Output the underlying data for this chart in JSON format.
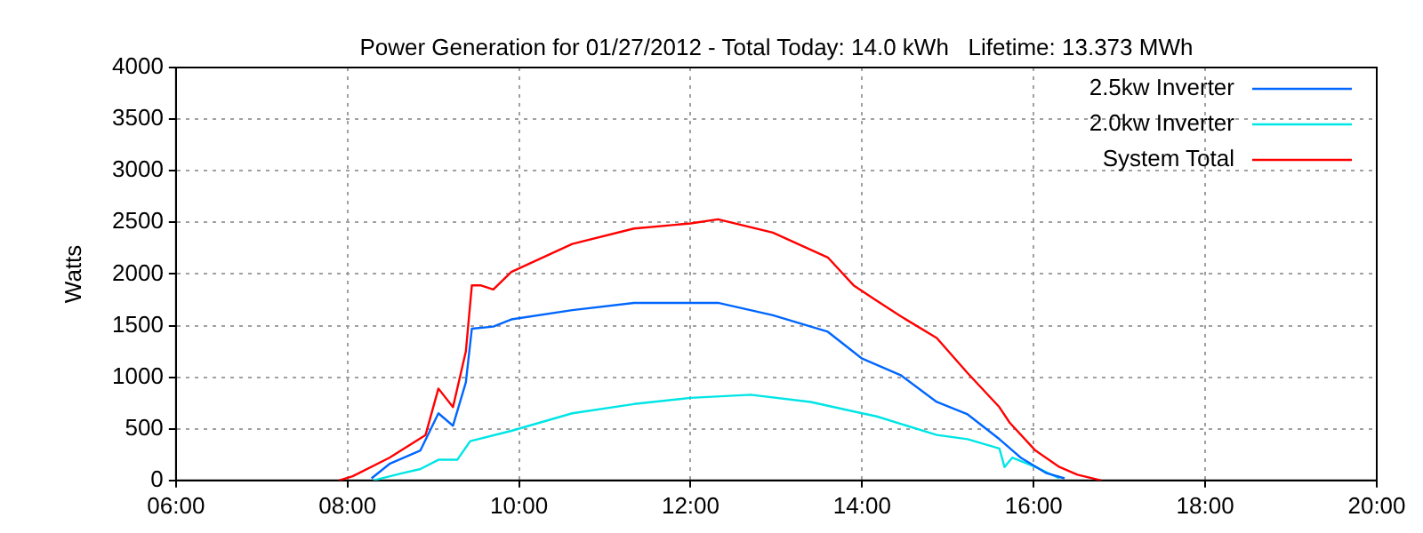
{
  "chart_data": {
    "type": "line",
    "title": "Power Generation for 01/27/2012 - Total Today: 14.0 kWh   Lifetime: 13.373 MWh",
    "ylabel": "Watts",
    "xlim": [
      6,
      20
    ],
    "xticks": [
      {
        "value": 6,
        "label": "06:00"
      },
      {
        "value": 8,
        "label": "08:00"
      },
      {
        "value": 10,
        "label": "10:00"
      },
      {
        "value": 12,
        "label": "12:00"
      },
      {
        "value": 14,
        "label": "14:00"
      },
      {
        "value": 16,
        "label": "16:00"
      },
      {
        "value": 18,
        "label": "18:00"
      },
      {
        "value": 20,
        "label": "20:00"
      }
    ],
    "ylim": [
      0,
      4000
    ],
    "yticks": [
      0,
      500,
      1000,
      1500,
      2000,
      2500,
      3000,
      3500,
      4000
    ],
    "grid": true,
    "legend": "top right",
    "marker": "none",
    "line_style": "solid",
    "series": [
      {
        "name": "2.5kw Inverter",
        "color": "#0066ff",
        "x": [
          8.28,
          8.49,
          8.85,
          9.06,
          9.23,
          9.38,
          9.45,
          9.7,
          9.91,
          10.62,
          11.34,
          12.32,
          12.96,
          13.6,
          14.0,
          14.45,
          14.87,
          15.23,
          15.6,
          15.85,
          16.15,
          16.36
        ],
        "values": [
          20,
          160,
          290,
          650,
          530,
          950,
          1470,
          1490,
          1560,
          1650,
          1720,
          1720,
          1600,
          1440,
          1180,
          1020,
          760,
          640,
          400,
          220,
          70,
          20
        ]
      },
      {
        "name": "2.0kw Inverter",
        "color": "#00e5e5",
        "x": [
          8.3,
          8.64,
          8.85,
          9.06,
          9.28,
          9.43,
          9.91,
          10.62,
          11.34,
          12.0,
          12.7,
          13.4,
          14.0,
          14.17,
          14.87,
          15.23,
          15.6,
          15.66,
          15.75,
          16.02,
          16.3
        ],
        "values": [
          0,
          70,
          110,
          200,
          200,
          380,
          480,
          650,
          740,
          800,
          830,
          760,
          650,
          620,
          440,
          400,
          310,
          130,
          220,
          130,
          20
        ]
      },
      {
        "name": "System Total",
        "color": "#ff0000",
        "x": [
          7.9,
          8.06,
          8.49,
          8.91,
          9.06,
          9.23,
          9.38,
          9.45,
          9.55,
          9.7,
          9.91,
          10.62,
          11.34,
          12.0,
          12.32,
          12.96,
          13.6,
          13.9,
          14.17,
          14.45,
          14.87,
          15.23,
          15.6,
          15.72,
          16.02,
          16.3,
          16.51,
          16.79
        ],
        "values": [
          0,
          40,
          220,
          440,
          890,
          710,
          1250,
          1890,
          1890,
          1850,
          2020,
          2290,
          2440,
          2490,
          2530,
          2400,
          2160,
          1890,
          1740,
          1590,
          1380,
          1040,
          710,
          560,
          290,
          130,
          55,
          0
        ]
      }
    ]
  }
}
